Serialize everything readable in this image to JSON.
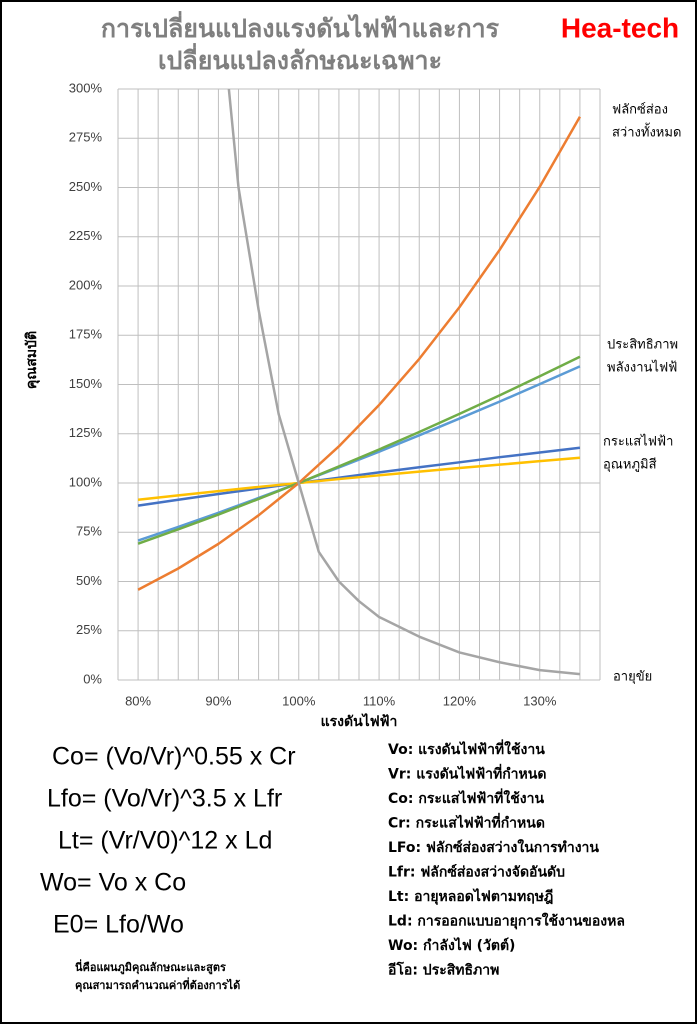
{
  "chart_data": {
    "type": "line",
    "title_lines": [
      "การเปลี่ยนแปลงแรงดันไฟฟ้าและการ",
      "เปลี่ยนแปลงลักษณะเฉพาะ"
    ],
    "brand": "Hea-tech",
    "x_label": "แรงดันไฟฟ้า",
    "y_label": "คุณสมบัติ",
    "xlim": [
      77.5,
      137.5
    ],
    "ylim": [
      0,
      300
    ],
    "xticks": [
      {
        "value": 80,
        "label": "80%"
      },
      {
        "value": 90,
        "label": "90%"
      },
      {
        "value": 100,
        "label": "100%"
      },
      {
        "value": 110,
        "label": "110%"
      },
      {
        "value": 120,
        "label": "120%"
      },
      {
        "value": 130,
        "label": "130%"
      }
    ],
    "xgrid": [
      77.5,
      80,
      82.5,
      85,
      87.5,
      90,
      92.5,
      95,
      97.5,
      100,
      102.5,
      105,
      107.5,
      110,
      112.5,
      115,
      117.5,
      120,
      122.5,
      125,
      127.5,
      130,
      132.5,
      135,
      137.5
    ],
    "yticks": [
      {
        "value": 0,
        "label": "0%"
      },
      {
        "value": 25,
        "label": "25%"
      },
      {
        "value": 50,
        "label": "50%"
      },
      {
        "value": 75,
        "label": "75%"
      },
      {
        "value": 100,
        "label": "100%"
      },
      {
        "value": 125,
        "label": "125%"
      },
      {
        "value": 150,
        "label": "150%"
      },
      {
        "value": 175,
        "label": "175%"
      },
      {
        "value": 200,
        "label": "200%"
      },
      {
        "value": 225,
        "label": "225%"
      },
      {
        "value": 250,
        "label": "250%"
      },
      {
        "value": 275,
        "label": "275%"
      },
      {
        "value": 300,
        "label": "300%"
      }
    ],
    "grid": true,
    "x": [
      80,
      85,
      90,
      95,
      100,
      105,
      110,
      115,
      120,
      125,
      130,
      135
    ],
    "series": [
      {
        "color": "#4472c4",
        "values": [
          88.5,
          91.5,
          94.4,
          97.2,
          100,
          102.7,
          105.4,
          108.0,
          110.5,
          113.1,
          115.5,
          117.9
        ]
      },
      {
        "color": "#ffc000",
        "values": [
          91.5,
          93.7,
          95.9,
          98.0,
          100,
          102.0,
          103.9,
          105.8,
          107.6,
          109.3,
          111.1,
          112.8
        ]
      },
      {
        "color": "#5b9bd5",
        "values": [
          70.8,
          77.7,
          84.9,
          92.4,
          100,
          107.9,
          115.9,
          124.2,
          132.7,
          141.3,
          150.2,
          159.2
        ]
      },
      {
        "color": "#70ad47",
        "values": [
          69.2,
          76.5,
          84.0,
          91.9,
          100,
          108.4,
          117.0,
          125.9,
          135.1,
          144.5,
          154.2,
          164.1
        ]
      },
      {
        "color": "#ed7d31",
        "values": [
          45.8,
          56.6,
          69.1,
          83.6,
          100,
          118.6,
          139.6,
          163.0,
          189.2,
          218.3,
          250.4,
          285.9
        ]
      },
      {
        "color": "#a5a5a5",
        "x": [
          91.3,
          92.5,
          95,
          97.5,
          100,
          102.5,
          105,
          107.5,
          110,
          115,
          120,
          125,
          130,
          135
        ],
        "values": [
          300,
          250,
          188,
          135,
          100,
          65,
          50,
          40,
          32,
          22,
          14,
          9,
          5,
          3
        ]
      }
    ],
    "end_labels": [
      [
        "ฟลักซ์ส่อง",
        "สว่างทั้งหมด"
      ],
      [
        "ประสิทธิภาพ",
        "พลังงานไฟฟ้"
      ],
      [
        "กระแสไฟฟ้า",
        "อุณหภูมิสี"
      ],
      [
        "อายุขัย"
      ]
    ],
    "formulas": [
      "Co= (Vo/Vr)^0.55 x Cr",
      "Lfo= (Vo/Vr)^3.5   x Lfr",
      "Lt= (Vr/V0)^12     x Ld",
      "Wo=  Vo x Co",
      "E0=  Lfo/Wo"
    ],
    "definitions": [
      "Vo: แรงดันไฟฟ้าที่ใช้งาน",
      "Vr: แรงดันไฟฟ้าที่กำหนด",
      "Co: กระแสไฟฟ้าที่ใช้งาน",
      "Cr: กระแสไฟฟ้าที่กำหนด",
      "LFo: ฟลักซ์ส่องสว่างในการทำงาน",
      "Lfr: ฟลักซ์ส่องสว่างจัดอันดับ",
      "Lt: อายุหลอดไฟตามทฤษฎี",
      "Ld: การออกแบบอายุการใช้งานของหล",
      "Wo: กำลังไฟ (วัตต์)",
      "อีโอ: ประสิทธิภาพ"
    ],
    "footnote": [
      "นี่คือแผนภูมิคุณลักษณะและสูตร",
      "คุณสามารถคำนวณค่าที่ต้องการได้"
    ]
  }
}
